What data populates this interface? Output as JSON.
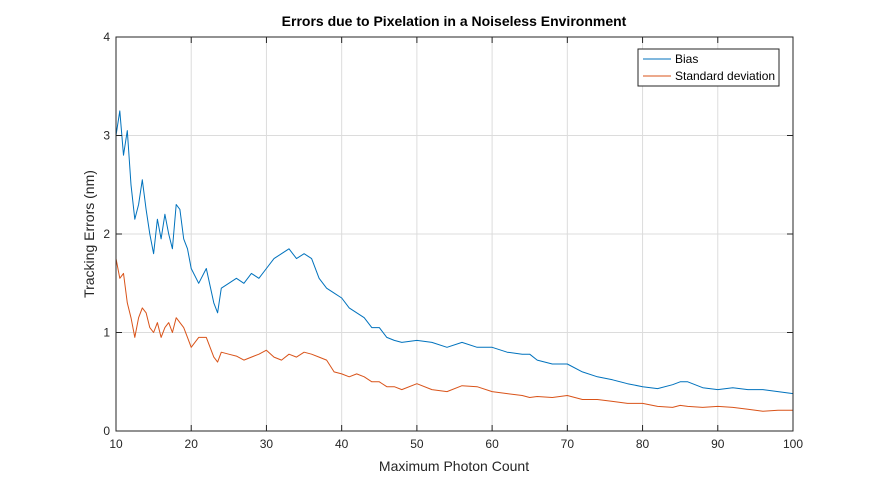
{
  "chart_data": {
    "type": "line",
    "title": "Errors due to Pixelation in a Noiseless Environment",
    "xlabel": "Maximum Photon Count",
    "ylabel": "Tracking Errors (nm)",
    "xlim": [
      10,
      100
    ],
    "ylim": [
      0,
      4
    ],
    "xticks": [
      10,
      20,
      30,
      40,
      50,
      60,
      70,
      80,
      90,
      100
    ],
    "yticks": [
      0,
      1,
      2,
      3,
      4
    ],
    "grid": true,
    "legend_position": "top-right",
    "series": [
      {
        "name": "Bias",
        "color": "#0072BD",
        "x": [
          10,
          10.5,
          11,
          11.5,
          12,
          12.5,
          13,
          13.5,
          14,
          14.5,
          15,
          15.5,
          16,
          16.5,
          17,
          17.5,
          18,
          18.5,
          19,
          19.5,
          20,
          21,
          22,
          23,
          23.5,
          24,
          25,
          26,
          27,
          28,
          29,
          30,
          31,
          32,
          33,
          34,
          35,
          36,
          37,
          38,
          39,
          40,
          41,
          42,
          43,
          44,
          45,
          46,
          47,
          48,
          50,
          52,
          54,
          56,
          58,
          60,
          62,
          64,
          65,
          66,
          68,
          70,
          72,
          74,
          76,
          78,
          80,
          82,
          84,
          85,
          86,
          88,
          90,
          92,
          94,
          96,
          98,
          100
        ],
        "y": [
          3.0,
          3.25,
          2.8,
          3.05,
          2.5,
          2.15,
          2.3,
          2.55,
          2.25,
          2.0,
          1.8,
          2.15,
          1.95,
          2.2,
          2.0,
          1.85,
          2.3,
          2.25,
          1.95,
          1.85,
          1.65,
          1.5,
          1.65,
          1.3,
          1.2,
          1.45,
          1.5,
          1.55,
          1.5,
          1.6,
          1.55,
          1.65,
          1.75,
          1.8,
          1.85,
          1.75,
          1.8,
          1.75,
          1.55,
          1.45,
          1.4,
          1.35,
          1.25,
          1.2,
          1.15,
          1.05,
          1.05,
          0.95,
          0.92,
          0.9,
          0.92,
          0.9,
          0.85,
          0.9,
          0.85,
          0.85,
          0.8,
          0.78,
          0.78,
          0.72,
          0.68,
          0.68,
          0.6,
          0.55,
          0.52,
          0.48,
          0.45,
          0.43,
          0.47,
          0.5,
          0.5,
          0.44,
          0.42,
          0.44,
          0.42,
          0.42,
          0.4,
          0.38
        ]
      },
      {
        "name": "Standard deviation",
        "color": "#D95319",
        "x": [
          10,
          10.5,
          11,
          11.5,
          12,
          12.5,
          13,
          13.5,
          14,
          14.5,
          15,
          15.5,
          16,
          16.5,
          17,
          17.5,
          18,
          18.5,
          19,
          19.5,
          20,
          21,
          22,
          23,
          23.5,
          24,
          25,
          26,
          27,
          28,
          29,
          30,
          31,
          32,
          33,
          34,
          35,
          36,
          37,
          38,
          39,
          40,
          41,
          42,
          43,
          44,
          45,
          46,
          47,
          48,
          50,
          52,
          54,
          56,
          58,
          60,
          62,
          64,
          65,
          66,
          68,
          70,
          72,
          74,
          76,
          78,
          80,
          82,
          84,
          85,
          86,
          88,
          90,
          92,
          94,
          96,
          98,
          100
        ],
        "y": [
          1.75,
          1.55,
          1.6,
          1.3,
          1.15,
          0.95,
          1.15,
          1.25,
          1.2,
          1.05,
          1.0,
          1.1,
          0.95,
          1.05,
          1.1,
          1.0,
          1.15,
          1.1,
          1.05,
          0.95,
          0.85,
          0.95,
          0.95,
          0.75,
          0.7,
          0.8,
          0.78,
          0.76,
          0.72,
          0.75,
          0.78,
          0.82,
          0.75,
          0.72,
          0.78,
          0.75,
          0.8,
          0.78,
          0.75,
          0.72,
          0.6,
          0.58,
          0.55,
          0.58,
          0.55,
          0.5,
          0.5,
          0.45,
          0.45,
          0.42,
          0.48,
          0.42,
          0.4,
          0.46,
          0.45,
          0.4,
          0.38,
          0.36,
          0.34,
          0.35,
          0.34,
          0.36,
          0.32,
          0.32,
          0.3,
          0.28,
          0.28,
          0.25,
          0.24,
          0.26,
          0.25,
          0.24,
          0.25,
          0.24,
          0.22,
          0.2,
          0.21,
          0.21
        ]
      }
    ]
  }
}
